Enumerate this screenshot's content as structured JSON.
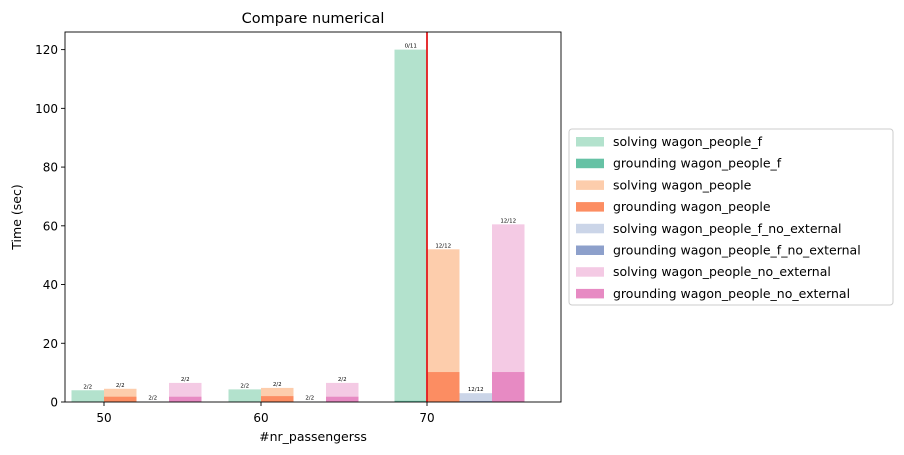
{
  "chart_data": {
    "type": "bar",
    "title": "Compare numerical",
    "xlabel": "#nr_passengerss",
    "ylabel": "Time (sec)",
    "ylim": [
      0,
      126
    ],
    "yticks": [
      0,
      20,
      40,
      60,
      80,
      100,
      120
    ],
    "categories": [
      "50",
      "60",
      "70"
    ],
    "vline_x": "70",
    "grid": false,
    "legend_placement": "right",
    "groups": [
      {
        "name": "wagon_people_f",
        "solving_label": "solving wagon_people_f",
        "grounding_label": "grounding wagon_people_f",
        "solving_color": "#b3e2cd",
        "grounding_color": "#66c2a5",
        "solving": [
          4.0,
          4.3,
          120.0
        ],
        "grounding": [
          0.1,
          0.1,
          0.4
        ],
        "labels": [
          "2/2",
          "2/2",
          "0/11"
        ]
      },
      {
        "name": "wagon_people",
        "solving_label": "solving wagon_people",
        "grounding_label": "grounding wagon_people",
        "solving_color": "#fdcdac",
        "grounding_color": "#fc8d62",
        "solving": [
          4.5,
          4.8,
          52.0
        ],
        "grounding": [
          1.8,
          2.0,
          10.2
        ],
        "labels": [
          "2/2",
          "2/2",
          "12/12"
        ]
      },
      {
        "name": "wagon_people_f_no_external",
        "solving_label": "solving wagon_people_f_no_external",
        "grounding_label": "grounding wagon_people_f_no_external",
        "solving_color": "#cbd5e8",
        "grounding_color": "#8da0cb",
        "solving": [
          0.1,
          0.1,
          3.0
        ],
        "grounding": [
          0.05,
          0.05,
          0.3
        ],
        "labels": [
          "2/2",
          "2/2",
          "12/12"
        ]
      },
      {
        "name": "wagon_people_no_external",
        "solving_label": "solving wagon_people_no_external",
        "grounding_label": "grounding wagon_people_no_external",
        "solving_color": "#f4cae4",
        "grounding_color": "#e78ac3",
        "solving": [
          6.5,
          6.5,
          60.5
        ],
        "grounding": [
          1.8,
          1.8,
          10.2
        ],
        "labels": [
          "2/2",
          "2/2",
          "12/12"
        ]
      }
    ],
    "colors": {
      "vline": "#e41a1c",
      "axis": "#000000"
    }
  }
}
